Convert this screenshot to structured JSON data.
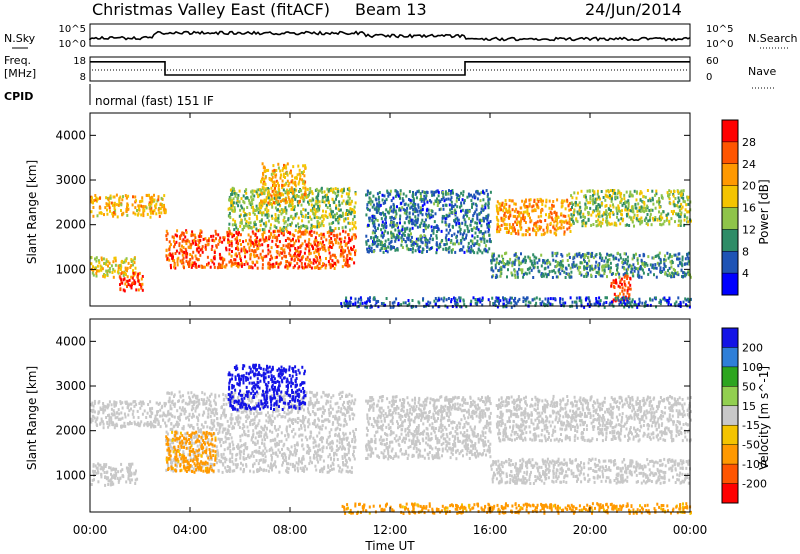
{
  "header": {
    "station": "Christmas Valley East (fitACF)",
    "beam": "Beam 13",
    "date": "24/Jun/2014"
  },
  "noise_panel": {
    "left_label": "N.Sky",
    "right_label": "N.Search",
    "left_ticks": [
      "10^5",
      "10^0"
    ],
    "right_ticks": [
      "10^5",
      "10^0"
    ]
  },
  "freq_panel": {
    "left_label_1": "Freq.",
    "left_label_2": "[MHz]",
    "right_label": "Nave",
    "left_ticks": [
      "18",
      "8"
    ],
    "right_ticks": [
      "60",
      "0"
    ],
    "freq_steps": [
      {
        "from": 0,
        "to": 3,
        "value": 16
      },
      {
        "from": 3,
        "to": 15,
        "value": 10.5
      },
      {
        "from": 15,
        "to": 24,
        "value": 16
      }
    ]
  },
  "cpid": {
    "label": "CPID",
    "value": "normal (fast) 151 IF"
  },
  "x_axis": {
    "label": "Time UT",
    "ticks": [
      "00:00",
      "04:00",
      "08:00",
      "12:00",
      "16:00",
      "20:00",
      "00:00"
    ],
    "range_hours": [
      0,
      24
    ]
  },
  "power_colorbar": {
    "title": "Power [dB]",
    "labels": [
      "28",
      "24",
      "20",
      "16",
      "12",
      "8",
      "4"
    ],
    "colors": [
      "#ff0000",
      "#ff5500",
      "#ff9900",
      "#f4c400",
      "#8fc44a",
      "#2f8c67",
      "#1f54b5",
      "#0000ff"
    ]
  },
  "velocity_colorbar": {
    "title": "Velocity [m s^-1]",
    "labels": [
      "200",
      "100",
      "50",
      "15",
      "-15",
      "-50",
      "-100",
      "-200"
    ],
    "colors": [
      "#1414e6",
      "#2f7fd8",
      "#2da51f",
      "#92d050",
      "#c8c8c8",
      "#f4c400",
      "#ff9900",
      "#ff5500",
      "#ff0000"
    ]
  },
  "chart_data": [
    {
      "type": "heatmap",
      "title": "",
      "xlabel": "Time UT",
      "ylabel": "Slant Range [km]",
      "xlim": [
        0,
        24
      ],
      "ylim": [
        180,
        4500
      ],
      "yticks": [
        1000,
        2000,
        3000,
        4000
      ],
      "colorbar": "Power [dB]",
      "scatter_bands": [
        {
          "t0": 0.0,
          "t1": 3.0,
          "r0": 2200,
          "r1": 2700,
          "level": 20
        },
        {
          "t0": 0.0,
          "t1": 1.9,
          "r0": 850,
          "r1": 1300,
          "level": 18
        },
        {
          "t0": 1.1,
          "t1": 2.1,
          "r0": 550,
          "r1": 950,
          "level": 28
        },
        {
          "t0": 3.0,
          "t1": 10.6,
          "r0": 1050,
          "r1": 1900,
          "level": 26
        },
        {
          "t0": 5.5,
          "t1": 10.6,
          "r0": 1900,
          "r1": 2850,
          "level": 14
        },
        {
          "t0": 6.8,
          "t1": 8.6,
          "r0": 2500,
          "r1": 3400,
          "level": 20
        },
        {
          "t0": 11.0,
          "t1": 16.0,
          "r0": 1400,
          "r1": 2800,
          "level": 8
        },
        {
          "t0": 16.2,
          "t1": 19.2,
          "r0": 1800,
          "r1": 2600,
          "level": 22
        },
        {
          "t0": 19.2,
          "t1": 24.0,
          "r0": 2000,
          "r1": 2800,
          "level": 14
        },
        {
          "t0": 16.0,
          "t1": 24.0,
          "r0": 850,
          "r1": 1400,
          "level": 10
        },
        {
          "t0": 20.8,
          "t1": 21.6,
          "r0": 300,
          "r1": 900,
          "level": 28
        },
        {
          "t0": 10.0,
          "t1": 24.0,
          "r0": 180,
          "r1": 400,
          "level": 6
        }
      ]
    },
    {
      "type": "heatmap",
      "title": "",
      "xlabel": "Time UT",
      "ylabel": "Slant Range [km]",
      "xlim": [
        0,
        24
      ],
      "ylim": [
        180,
        4500
      ],
      "yticks": [
        1000,
        2000,
        3000,
        4000
      ],
      "colorbar": "Velocity [m s^-1]",
      "scatter_bands": [
        {
          "t0": 0.0,
          "t1": 3.0,
          "r0": 2100,
          "r1": 2700,
          "level": 0
        },
        {
          "t0": 0.0,
          "t1": 1.9,
          "r0": 800,
          "r1": 1300,
          "level": 0
        },
        {
          "t0": 3.0,
          "t1": 10.6,
          "r0": 1100,
          "r1": 2900,
          "level": 0
        },
        {
          "t0": 3.0,
          "t1": 5.0,
          "r0": 1100,
          "r1": 2000,
          "level": -60
        },
        {
          "t0": 5.5,
          "t1": 8.6,
          "r0": 2500,
          "r1": 3500,
          "level": 220
        },
        {
          "t0": 11.0,
          "t1": 16.0,
          "r0": 1400,
          "r1": 2800,
          "level": 0
        },
        {
          "t0": 16.2,
          "t1": 24.0,
          "r0": 1800,
          "r1": 2800,
          "level": 0
        },
        {
          "t0": 16.0,
          "t1": 24.0,
          "r0": 850,
          "r1": 1400,
          "level": 0
        },
        {
          "t0": 10.0,
          "t1": 24.0,
          "r0": 180,
          "r1": 400,
          "level": -60
        }
      ]
    }
  ]
}
